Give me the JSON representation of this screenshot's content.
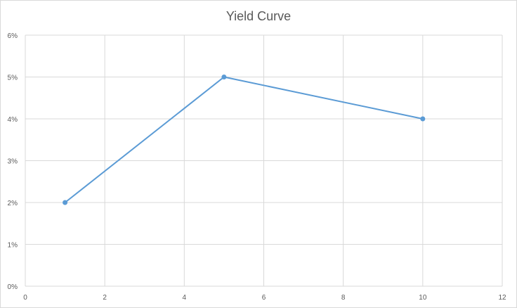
{
  "chart_data": {
    "type": "scatter",
    "title": "Yield Curve",
    "xlabel": "",
    "ylabel": "",
    "x_ticks": [
      0,
      2,
      4,
      6,
      8,
      10,
      12
    ],
    "x_tick_labels": [
      "0",
      "2",
      "4",
      "6",
      "8",
      "10",
      "12"
    ],
    "y_ticks": [
      0,
      0.01,
      0.02,
      0.03,
      0.04,
      0.05,
      0.06
    ],
    "y_tick_labels": [
      "0%",
      "1%",
      "2%",
      "3%",
      "4%",
      "5%",
      "6%"
    ],
    "xlim": [
      0,
      12
    ],
    "ylim": [
      0,
      0.06
    ],
    "grid": true,
    "legend": "none",
    "series": [
      {
        "x": [
          1,
          5,
          10
        ],
        "y": [
          0.02,
          0.05,
          0.04
        ],
        "color": "#5b9bd5",
        "style": "line-with-markers"
      }
    ]
  }
}
